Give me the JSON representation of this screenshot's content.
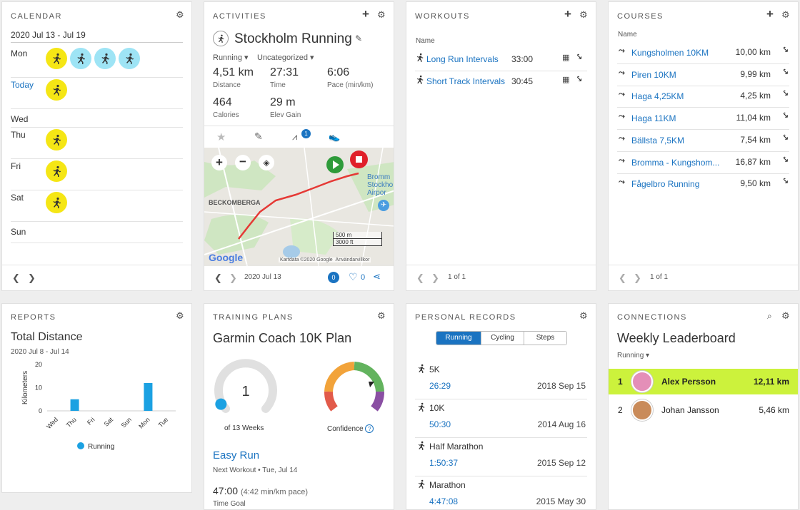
{
  "calendar": {
    "title": "CALENDAR",
    "range": "2020 Jul 13 - Jul 19",
    "days": [
      {
        "label": "Mon",
        "is_today": false,
        "activities": [
          "yellow",
          "blue",
          "blue",
          "blue"
        ]
      },
      {
        "label": "Today",
        "is_today": true,
        "activities": [
          "yellow"
        ]
      },
      {
        "label": "Wed",
        "is_today": false,
        "activities": []
      },
      {
        "label": "Thu",
        "is_today": false,
        "activities": [
          "yellow"
        ]
      },
      {
        "label": "Fri",
        "is_today": false,
        "activities": [
          "yellow"
        ]
      },
      {
        "label": "Sat",
        "is_today": false,
        "activities": [
          "yellow"
        ]
      },
      {
        "label": "Sun",
        "is_today": false,
        "activities": []
      }
    ]
  },
  "activities": {
    "title": "ACTIVITIES",
    "activity_name": "Stockholm Running",
    "type": "Running",
    "category": "Uncategorized",
    "stats": [
      {
        "value": "4,51 km",
        "label": "Distance"
      },
      {
        "value": "27:31",
        "label": "Time"
      },
      {
        "value": "6:06",
        "label": "Pace (min/km)"
      },
      {
        "value": "464",
        "label": "Calories"
      },
      {
        "value": "29 m",
        "label": "Elev Gain"
      }
    ],
    "badge_count": "1",
    "map": {
      "area_label": "BECKOMBERGA",
      "airport_label_1": "Bromm",
      "airport_label_2": "Stockho",
      "airport_label_3": "Airpor",
      "scale_m": "500 m",
      "scale_ft": "3000 ft",
      "attribution": "Kartdata ©2020 Google",
      "terms": "Användarvillkor",
      "google": "Google"
    },
    "date": "2020 Jul 13",
    "comments": "0",
    "likes": "0"
  },
  "workouts": {
    "title": "WORKOUTS",
    "col_name": "Name",
    "items": [
      {
        "name": "Long Run Intervals",
        "duration": "33:00"
      },
      {
        "name": "Short Track Intervals",
        "duration": "30:45"
      }
    ],
    "pager": "1 of 1"
  },
  "courses": {
    "title": "COURSES",
    "col_name": "Name",
    "items": [
      {
        "name": "Kungsholmen 10KM",
        "distance": "10,00 km"
      },
      {
        "name": "Piren 10KM",
        "distance": "9,99 km"
      },
      {
        "name": "Haga 4,25KM",
        "distance": "4,25 km"
      },
      {
        "name": "Haga 11KM",
        "distance": "11,04 km"
      },
      {
        "name": "Bällsta 7,5KM",
        "distance": "7,54 km"
      },
      {
        "name": "Bromma - Kungshom...",
        "distance": "16,87 km"
      },
      {
        "name": "Fågelbro Running",
        "distance": "9,50 km"
      }
    ],
    "pager": "1 of 1"
  },
  "reports": {
    "title": "REPORTS",
    "report_name": "Total Distance",
    "range": "2020 Jul 8 - Jul 14",
    "legend": "Running"
  },
  "chart_data": {
    "type": "bar",
    "categories": [
      "Wed",
      "Thu",
      "Fri",
      "Sat",
      "Sun",
      "Mon",
      "Tue"
    ],
    "series": [
      {
        "name": "Running",
        "values": [
          0,
          5,
          0,
          0,
          0,
          12,
          0
        ],
        "color": "#1ba1e2"
      }
    ],
    "ylabel": "Kilometers",
    "yticks": [
      "0",
      "10",
      "20"
    ],
    "ylim": [
      0,
      20
    ]
  },
  "training": {
    "title": "TRAINING PLANS",
    "plan_name": "Garmin Coach 10K Plan",
    "week_value": "1",
    "week_of": "of 13 Weeks",
    "week_progress": 0.077,
    "confidence_label": "Confidence",
    "next_workout_name": "Easy Run",
    "next_workout_meta": "Next Workout • Tue, Jul 14",
    "time_goal": "47:00",
    "pace": "(4:42 min/km pace)",
    "time_goal_label": "Time Goal"
  },
  "records": {
    "title": "PERSONAL RECORDS",
    "tabs": [
      "Running",
      "Cycling",
      "Steps"
    ],
    "active_tab": 0,
    "items": [
      {
        "event": "5K",
        "time": "26:29",
        "date": "2018 Sep 15"
      },
      {
        "event": "10K",
        "time": "50:30",
        "date": "2014 Aug 16"
      },
      {
        "event": "Half Marathon",
        "time": "1:50:37",
        "date": "2015 Sep 12"
      },
      {
        "event": "Marathon",
        "time": "4:47:08",
        "date": "2015 May 30"
      }
    ]
  },
  "connections": {
    "title": "CONNECTIONS",
    "board_name": "Weekly Leaderboard",
    "filter": "Running",
    "leaders": [
      {
        "rank": "1",
        "name": "Alex Persson",
        "distance": "12,11 km",
        "highlight": true
      },
      {
        "rank": "2",
        "name": "Johan Jansson",
        "distance": "5,46 km",
        "highlight": false
      }
    ]
  },
  "colors": {
    "accent": "#1a73c1",
    "highlight": "#ccf23c",
    "activity_yellow": "#f5e615",
    "activity_blue": "#9ee4f5"
  }
}
